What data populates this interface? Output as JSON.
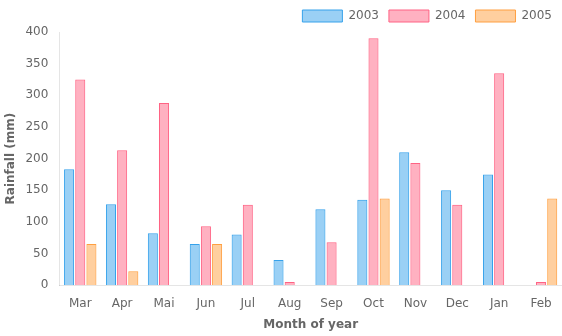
{
  "chart_data": {
    "type": "bar",
    "categories": [
      "Mar",
      "Apr",
      "Mai",
      "Jun",
      "Jul",
      "Aug",
      "Sep",
      "Oct",
      "Nov",
      "Dec",
      "Jan",
      "Feb"
    ],
    "series": [
      {
        "name": "2003",
        "values": [
          183,
          128,
          82,
          65,
          80,
          40,
          120,
          135,
          210,
          150,
          175,
          0
        ]
      },
      {
        "name": "2004",
        "values": [
          325,
          213,
          288,
          93,
          127,
          5,
          68,
          390,
          193,
          127,
          335,
          5
        ]
      },
      {
        "name": "2005",
        "values": [
          65,
          22,
          0,
          65,
          0,
          0,
          0,
          137,
          0,
          0,
          0,
          137
        ]
      }
    ],
    "xlabel": "Month of year",
    "ylabel": "Rainfall (mm)",
    "ylim": [
      0,
      400
    ],
    "yticks": [
      0,
      50,
      100,
      150,
      200,
      250,
      300,
      350,
      400
    ],
    "grid": false,
    "legend": "upper right"
  }
}
